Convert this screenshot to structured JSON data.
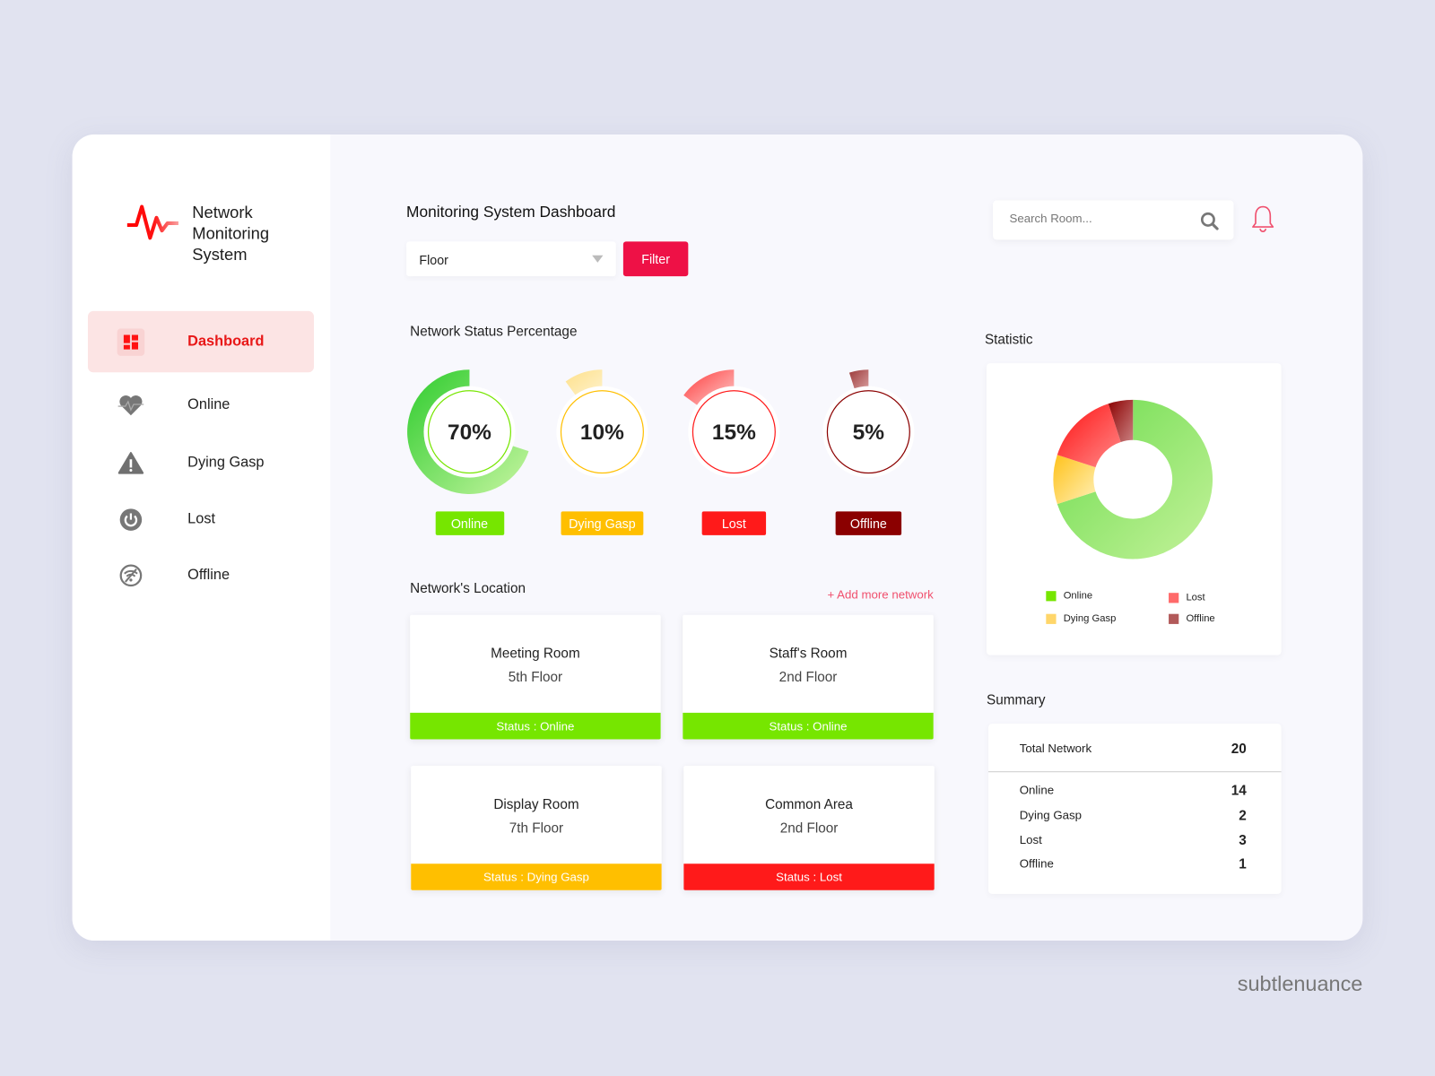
{
  "brand": {
    "title_lines": [
      "Network",
      "Monitoring",
      "System"
    ]
  },
  "sidebar": {
    "items": [
      {
        "label": "Dashboard",
        "icon": "dashboard-icon",
        "active": true
      },
      {
        "label": "Online",
        "icon": "heart-pulse-icon"
      },
      {
        "label": "Dying Gasp",
        "icon": "warning-icon"
      },
      {
        "label": "Lost",
        "icon": "power-icon"
      },
      {
        "label": "Offline",
        "icon": "wifi-off-icon"
      }
    ]
  },
  "header": {
    "title": "Monitoring System Dashboard",
    "floor_select": "Floor",
    "filter_label": "Filter",
    "search_placeholder": "Search Room..."
  },
  "status": {
    "title": "Network Status Percentage",
    "gauges": [
      {
        "label": "Online",
        "percent": 70,
        "text": "70%",
        "color": "#76e600"
      },
      {
        "label": "Dying Gasp",
        "percent": 10,
        "text": "10%",
        "color": "#ffbf00"
      },
      {
        "label": "Lost",
        "percent": 15,
        "text": "15%",
        "color": "#ff1a1a"
      },
      {
        "label": "Offline",
        "percent": 5,
        "text": "5%",
        "color": "#8b0000"
      }
    ]
  },
  "locations": {
    "title": "Network's Location",
    "add_label": "+ Add more network",
    "items": [
      {
        "name": "Meeting Room",
        "floor": "5th Floor",
        "status": "Status : Online",
        "color": "#76e600"
      },
      {
        "name": "Staff's Room",
        "floor": "2nd Floor",
        "status": "Status : Online",
        "color": "#76e600"
      },
      {
        "name": "Display Room",
        "floor": "7th Floor",
        "status": "Status : Dying Gasp",
        "color": "#ffbf00"
      },
      {
        "name": "Common Area",
        "floor": "2nd Floor",
        "status": "Status : Lost",
        "color": "#ff1a1a"
      }
    ]
  },
  "statistic": {
    "title": "Statistic"
  },
  "chart_data": {
    "type": "pie",
    "categories": [
      "Online",
      "Dying Gasp",
      "Lost",
      "Offline"
    ],
    "values": [
      70,
      10,
      15,
      5
    ],
    "colors": [
      "#76dd55",
      "#ffd04d",
      "#ff2a2a",
      "#8b0000"
    ],
    "legend": [
      "Online",
      "Lost",
      "Dying Gasp",
      "Offline"
    ],
    "donut": true
  },
  "summary": {
    "title": "Summary",
    "total_label": "Total Network",
    "total": "20",
    "rows": [
      {
        "label": "Online",
        "value": "14"
      },
      {
        "label": "Dying Gasp",
        "value": "2"
      },
      {
        "label": "Lost",
        "value": "3"
      },
      {
        "label": "Offline",
        "value": "1"
      }
    ]
  },
  "watermark": "subtlenuance"
}
